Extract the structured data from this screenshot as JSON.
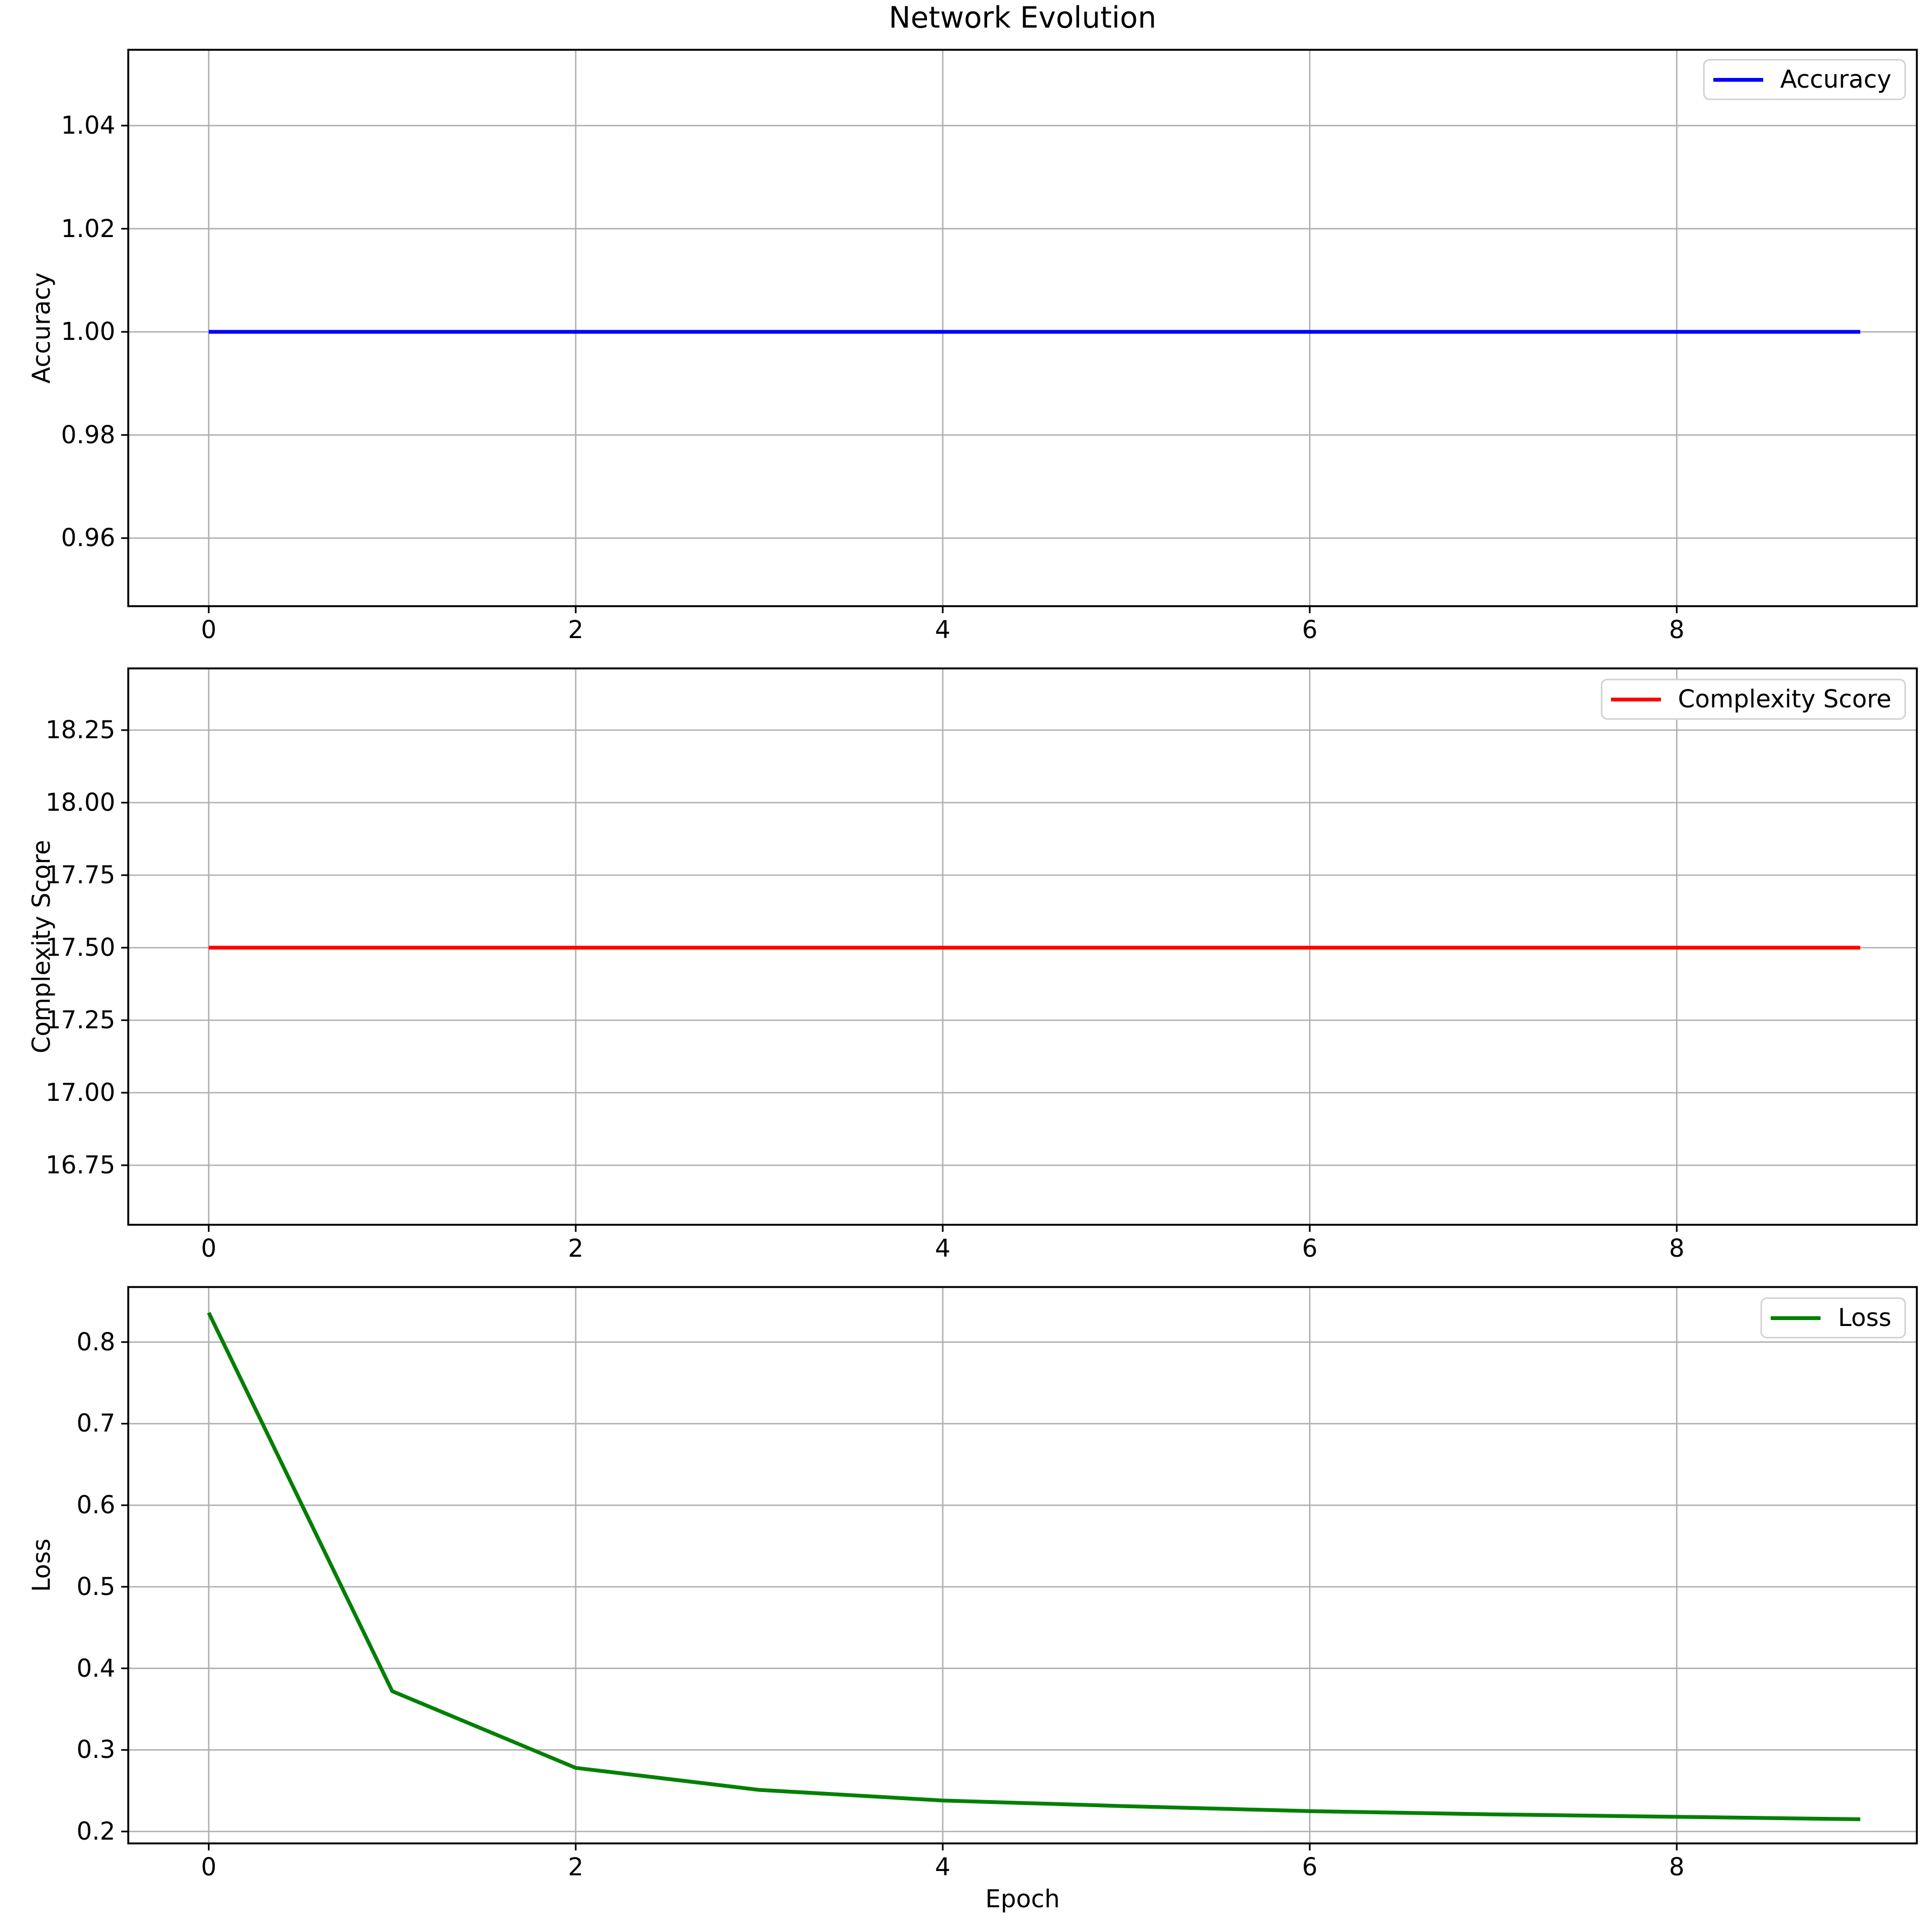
{
  "figure": {
    "title": "Network Evolution",
    "xlabel": "Epoch",
    "background": "#ffffff",
    "grid_color": "#b0b0b0",
    "spine_color": "#000000",
    "tick_color": "#000000"
  },
  "chart_data": [
    {
      "type": "line",
      "ylabel": "Accuracy",
      "legend": "Accuracy",
      "legend_position": "upper right",
      "color": "#0000ff",
      "grid": true,
      "x": [
        0,
        1,
        2,
        3,
        4,
        5,
        6,
        7,
        8,
        9
      ],
      "values": [
        1.0,
        1.0,
        1.0,
        1.0,
        1.0,
        1.0,
        1.0,
        1.0,
        1.0,
        1.0
      ],
      "xlim": [
        -0.4385,
        9.3085
      ],
      "ylim": [
        0.9468,
        1.0547
      ],
      "xticks": [
        0,
        2,
        4,
        6,
        8
      ],
      "xtick_labels": [
        "0",
        "2",
        "4",
        "6",
        "8"
      ],
      "yticks": [
        0.96,
        0.98,
        1.0,
        1.02,
        1.04
      ],
      "ytick_labels": [
        "0.96",
        "0.98",
        "1.00",
        "1.02",
        "1.04"
      ]
    },
    {
      "type": "line",
      "ylabel": "Complexity Score",
      "legend": "Complexity Score",
      "legend_position": "upper right",
      "color": "#ff0000",
      "grid": true,
      "x": [
        0,
        1,
        2,
        3,
        4,
        5,
        6,
        7,
        8,
        9
      ],
      "values": [
        17.5,
        17.5,
        17.5,
        17.5,
        17.5,
        17.5,
        17.5,
        17.5,
        17.5,
        17.5
      ],
      "xlim": [
        -0.4385,
        9.3085
      ],
      "ylim": [
        16.5448,
        18.4627
      ],
      "xticks": [
        0,
        2,
        4,
        6,
        8
      ],
      "xtick_labels": [
        "0",
        "2",
        "4",
        "6",
        "8"
      ],
      "yticks": [
        16.75,
        17.0,
        17.25,
        17.5,
        17.75,
        18.0,
        18.25
      ],
      "ytick_labels": [
        "16.75",
        "17.00",
        "17.25",
        "17.50",
        "17.75",
        "18.00",
        "18.25"
      ]
    },
    {
      "type": "line",
      "ylabel": "Loss",
      "legend": "Loss",
      "legend_position": "upper right",
      "color": "#008000",
      "grid": true,
      "xlabel": "Epoch",
      "x": [
        0,
        1,
        2,
        3,
        4,
        5,
        6,
        7,
        8,
        9
      ],
      "values": [
        0.836,
        0.372,
        0.278,
        0.251,
        0.238,
        0.231,
        0.225,
        0.221,
        0.218,
        0.215
      ],
      "xlim": [
        -0.4385,
        9.3085
      ],
      "ylim": [
        0.1854,
        0.8675
      ],
      "xticks": [
        0,
        2,
        4,
        6,
        8
      ],
      "xtick_labels": [
        "0",
        "2",
        "4",
        "6",
        "8"
      ],
      "yticks": [
        0.2,
        0.3,
        0.4,
        0.5,
        0.6,
        0.7,
        0.8
      ],
      "ytick_labels": [
        "0.2",
        "0.3",
        "0.4",
        "0.5",
        "0.6",
        "0.7",
        "0.8"
      ]
    }
  ]
}
